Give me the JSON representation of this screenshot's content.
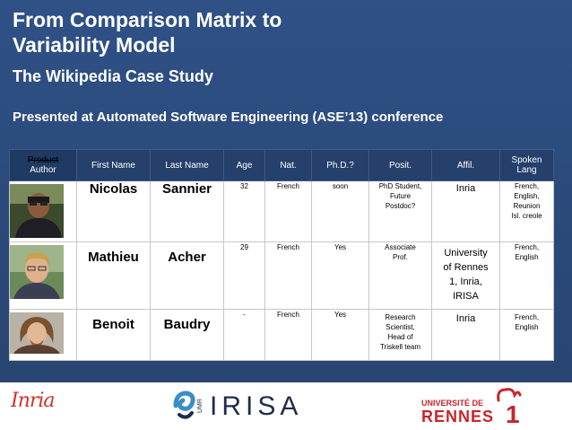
{
  "slide": {
    "title_line1": "From Comparison Matrix to",
    "title_line2": "Variability Model",
    "subtitle": "The Wikipedia Case Study",
    "conference": "Presented at Automated Software Engineering (ASE’13) conference"
  },
  "table": {
    "headers": {
      "product": "Product",
      "author": "Author",
      "first_name": "First Name",
      "last_name": "Last Name",
      "age": "Age",
      "nat": "Nat.",
      "phd": "Ph.D.?",
      "posit": "Posit.",
      "affil": "Affil.",
      "spoken_line1": "Spoken",
      "spoken_line2": "Lang"
    },
    "rows": [
      {
        "first": "Nicolas",
        "last": "Sannier",
        "age": "32",
        "nat": "French",
        "phd": "soon",
        "posit": [
          "PhD Student,",
          "Future",
          "Postdoc?"
        ],
        "affil": [
          "Inria"
        ],
        "lang": [
          "French,",
          "English,",
          "Reunion",
          "Isl. creole"
        ]
      },
      {
        "first": "Mathieu",
        "last": "Acher",
        "age": "29",
        "nat": "French",
        "phd": "Yes",
        "posit": [
          "Associate",
          "Prof."
        ],
        "affil": [
          "University",
          "of Rennes",
          "1, Inria,",
          "IRISA"
        ],
        "lang": [
          "French,",
          "English"
        ]
      },
      {
        "first": "Benoit",
        "last": "Baudry",
        "age": "-",
        "nat": "French",
        "phd": "Yes",
        "posit": [
          "Research",
          "Scientist,",
          "Head of",
          "Triskell team"
        ],
        "affil": [
          "Inria"
        ],
        "lang": [
          "French,",
          "English"
        ]
      }
    ]
  },
  "logos": {
    "inria": "Inria",
    "irisa": "IRISA",
    "umr": "UMR",
    "univ": "UNIVERSITÉ DE",
    "rennes": "RENNES",
    "rennes_num": "1"
  },
  "colors": {
    "slide_bg": "#2b4a7c",
    "header_bg": "#24406b",
    "inria_red": "#d1332c",
    "rennes_red": "#c8242a",
    "irisa_navy": "#1f2c4d"
  }
}
